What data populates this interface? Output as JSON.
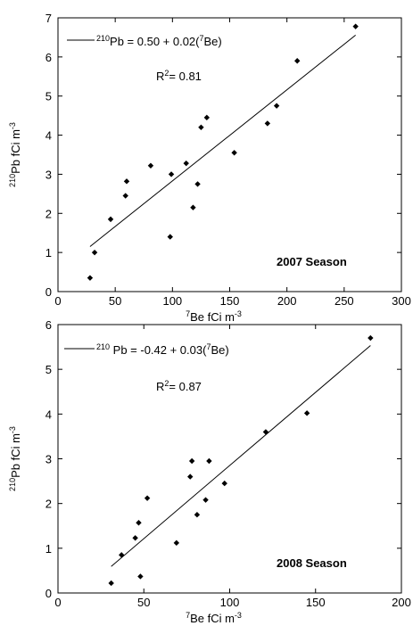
{
  "chart_data": [
    {
      "type": "scatter",
      "season_label": "2007 Season",
      "xlabel": {
        "sup": "7",
        "text": "Be fCi m",
        "unit_sup": "-3"
      },
      "ylabel": {
        "sup": "210",
        "text": "Pb fCi m",
        "unit_sup": "-3"
      },
      "xlim": [
        0,
        300
      ],
      "ylim": [
        0,
        7
      ],
      "xticks": [
        0,
        50,
        100,
        150,
        200,
        250,
        300
      ],
      "yticks": [
        0,
        1,
        2,
        3,
        4,
        5,
        6,
        7
      ],
      "x": [
        28,
        32,
        46,
        59,
        60,
        81,
        98,
        99,
        112,
        118,
        122,
        125,
        130,
        154,
        183,
        191,
        209,
        260
      ],
      "y": [
        0.35,
        1.0,
        1.85,
        2.45,
        2.82,
        3.22,
        1.4,
        3.0,
        3.28,
        2.15,
        2.75,
        4.2,
        4.45,
        3.55,
        4.3,
        4.75,
        5.9,
        6.78
      ],
      "fit": {
        "intercept": 0.5,
        "slope": 0.0233,
        "x_range": [
          28,
          260
        ]
      },
      "legend": {
        "pre": "",
        "sup": "210",
        "mid": "Pb = 0.50 + 0.02(",
        "sup2": "7",
        "post": "Be)",
        "r2_base": "R",
        "r2_sup": "2",
        "r2_val": "= 0.81"
      }
    },
    {
      "type": "scatter",
      "season_label": "2008 Season",
      "xlabel": {
        "sup": "7",
        "text": "Be fCi m",
        "unit_sup": "-3"
      },
      "ylabel": {
        "sup": "210",
        "text": "Pb fCi m",
        "unit_sup": "-3"
      },
      "xlim": [
        0,
        200
      ],
      "ylim": [
        0,
        6
      ],
      "xticks": [
        0,
        50,
        100,
        150,
        200
      ],
      "yticks": [
        0,
        1,
        2,
        3,
        4,
        5,
        6
      ],
      "x": [
        31,
        37,
        45,
        47,
        48,
        52,
        69,
        77,
        78,
        81,
        86,
        88,
        97,
        121,
        145,
        182
      ],
      "y": [
        0.22,
        0.85,
        1.23,
        1.57,
        0.37,
        2.12,
        1.12,
        2.6,
        2.95,
        1.75,
        2.08,
        2.95,
        2.45,
        3.6,
        4.02,
        5.7
      ],
      "fit": {
        "intercept": -0.42,
        "slope": 0.0327,
        "x_range": [
          31,
          182
        ]
      },
      "legend": {
        "pre": "",
        "sup": "210",
        "mid": " Pb = -0.42 + 0.03(",
        "sup2": "7",
        "post": "Be)",
        "r2_base": "R",
        "r2_sup": "2",
        "r2_val": "= 0.87"
      }
    }
  ]
}
